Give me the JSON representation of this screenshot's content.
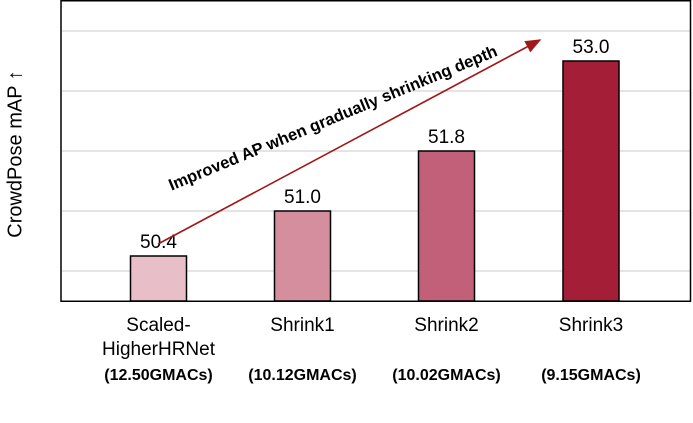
{
  "chart_data": {
    "type": "bar",
    "title": "",
    "xlabel": "",
    "ylabel": "CrowdPose mAP ↑",
    "categories": [
      "Scaled-HigherHRNet",
      "Shrink1",
      "Shrink2",
      "Shrink3"
    ],
    "category_labels": [
      "Scaled-\nHigherHRNet",
      "Shrink1",
      "Shrink2",
      "Shrink3"
    ],
    "gmacs": [
      "(12.50GMACs)",
      "(10.12GMACs)",
      "(10.02GMACs)",
      "(9.15GMACs)"
    ],
    "values": [
      50.4,
      51.0,
      51.8,
      53.0
    ],
    "value_labels": [
      "50.4",
      "51.0",
      "51.8",
      "53.0"
    ],
    "bar_colors": [
      "#e8bec8",
      "#d48e9e",
      "#c2607a",
      "#a41e38"
    ],
    "ylim": [
      49.8,
      53.8
    ],
    "grid": true,
    "annotation": {
      "text": "Improved AP when gradually shrinking depth",
      "color": "#a01818"
    }
  }
}
